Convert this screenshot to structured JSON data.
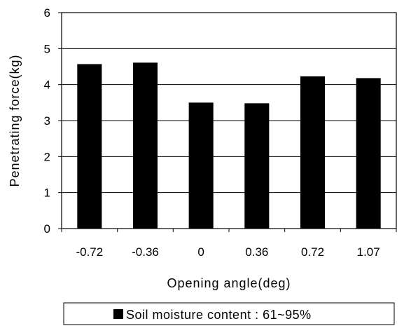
{
  "chart_data": {
    "type": "bar",
    "categories": [
      "-0.72",
      "-0.36",
      "0",
      "0.36",
      "0.72",
      "1.07"
    ],
    "series": [
      {
        "name": "Soil moisture content : 61~95%",
        "values": [
          4.57,
          4.61,
          3.5,
          3.48,
          4.23,
          4.18
        ],
        "color": "#000000"
      }
    ],
    "xlabel": "Opening angle(deg)",
    "ylabel": "Penetrating force(kg)",
    "ylim": [
      0,
      6
    ],
    "yticks": [
      "0",
      "1",
      "2",
      "3",
      "4",
      "5",
      "6"
    ],
    "grid": true,
    "legend_position": "bottom"
  }
}
